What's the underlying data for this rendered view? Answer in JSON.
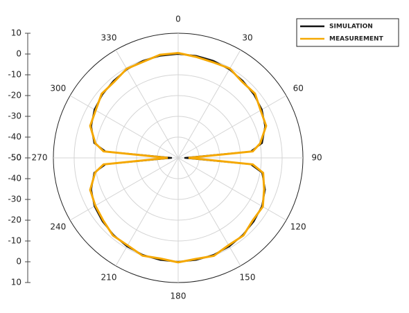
{
  "chart_data": {
    "type": "polar",
    "theta": [
      0,
      10,
      20,
      30,
      40,
      50,
      60,
      70,
      80,
      85,
      90,
      95,
      100,
      110,
      120,
      130,
      140,
      150,
      160,
      170,
      180,
      190,
      200,
      210,
      220,
      230,
      240,
      250,
      260,
      265,
      270,
      275,
      280,
      290,
      300,
      310,
      320,
      330,
      340,
      350,
      360
    ],
    "series": [
      {
        "name": "SIMULATION",
        "color": "#111111",
        "values": [
          0,
          -0.1,
          -0.3,
          -0.8,
          -1.6,
          -2.5,
          -3.5,
          -5.5,
          -9,
          -15,
          -47,
          -15,
          -9,
          -5.5,
          -3.5,
          -2.5,
          -1.6,
          -0.8,
          -0.3,
          -0.1,
          0,
          -0.1,
          -0.3,
          -0.8,
          -1.6,
          -2.5,
          -3.5,
          -5.5,
          -9,
          -15,
          -47,
          -15,
          -9,
          -5.5,
          -3.5,
          -2.5,
          -1.6,
          -0.8,
          -0.3,
          -0.1,
          0
        ]
      },
      {
        "name": "MEASUREMENT",
        "color": "#f5a800",
        "values": [
          0.5,
          -0.6,
          -1,
          -0.3,
          -2.2,
          -1.8,
          -4.2,
          -5,
          -10,
          -14,
          -45,
          -14,
          -8.5,
          -6,
          -3,
          -3.2,
          -1.2,
          -1.5,
          0.2,
          -0.6,
          0.3,
          -0.8,
          0.1,
          -1.4,
          -1.2,
          -3,
          -4,
          -5,
          -9.5,
          -14,
          -45,
          -14,
          -9.6,
          -5,
          -4.2,
          -2,
          -2.2,
          -0.5,
          -0.8,
          0.4,
          0.5
        ]
      }
    ],
    "rlim": [
      -50,
      10
    ],
    "rticks": [
      -50,
      -40,
      -30,
      -20,
      -10,
      0,
      10
    ],
    "thetaticks": [
      0,
      30,
      60,
      90,
      120,
      150,
      180,
      210,
      240,
      270,
      300,
      330
    ],
    "grid": true,
    "legend": "upper right"
  }
}
